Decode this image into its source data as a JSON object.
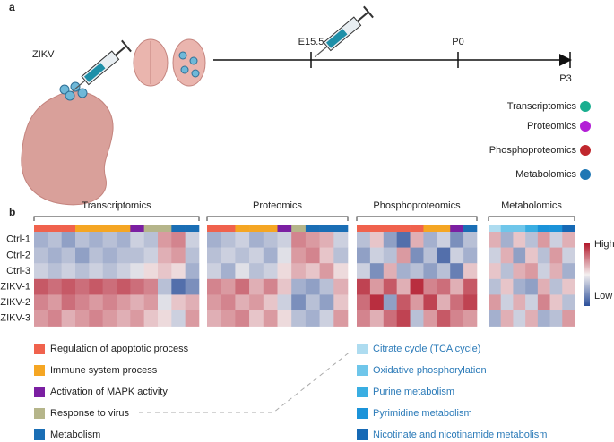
{
  "panel_a": {
    "label": "a",
    "virus": "ZIKV",
    "timeline": [
      "E15.5",
      "P0",
      "P3"
    ],
    "omics": [
      {
        "label": "Transcriptomics",
        "color": "#1aae8f"
      },
      {
        "label": "Proteomics",
        "color": "#b31fd6"
      },
      {
        "label": "Phosphoproteomics",
        "color": "#c0272d"
      },
      {
        "label": "Metabolomics",
        "color": "#1f77b4"
      }
    ]
  },
  "panel_b": {
    "label": "b",
    "rows": [
      "Ctrl-1",
      "Ctrl-2",
      "Ctrl-3",
      "ZIKV-1",
      "ZIKV-2",
      "ZIKV-3"
    ],
    "scale": [
      -1,
      1
    ],
    "scale_high": "High",
    "scale_low": "Low",
    "panels": [
      {
        "title": "Transcriptomics",
        "annotation": [
          "#f0624d",
          "#f0624d",
          "#f0624d",
          "#f5a623",
          "#f5a623",
          "#f5a623",
          "#f5a623",
          "#7b1fa2",
          "#b5b58a",
          "#b5b58a",
          "#1a6eb5",
          "#1a6eb5"
        ],
        "values": [
          [
            -0.4,
            -0.3,
            -0.5,
            -0.3,
            -0.4,
            -0.3,
            -0.4,
            -0.2,
            -0.3,
            0.4,
            0.5,
            -0.2
          ],
          [
            -0.3,
            -0.4,
            -0.3,
            -0.5,
            -0.3,
            -0.4,
            -0.3,
            -0.3,
            -0.2,
            0.3,
            0.4,
            -0.3
          ],
          [
            -0.2,
            -0.3,
            -0.2,
            -0.3,
            -0.2,
            -0.3,
            -0.2,
            -0.1,
            0.1,
            0.2,
            0.1,
            -0.4
          ],
          [
            0.7,
            0.6,
            0.7,
            0.6,
            0.7,
            0.6,
            0.7,
            0.6,
            0.5,
            -0.3,
            -0.8,
            -0.6
          ],
          [
            0.5,
            0.4,
            0.6,
            0.5,
            0.4,
            0.5,
            0.4,
            0.3,
            0.4,
            -0.1,
            0.2,
            0.3
          ],
          [
            0.4,
            0.5,
            0.3,
            0.4,
            0.5,
            0.4,
            0.3,
            0.4,
            0.2,
            0.1,
            -0.2,
            0.4
          ]
        ]
      },
      {
        "title": "Proteomics",
        "annotation": [
          "#f0624d",
          "#f0624d",
          "#f5a623",
          "#f5a623",
          "#f5a623",
          "#7b1fa2",
          "#b5b58a",
          "#1a6eb5",
          "#1a6eb5",
          "#1a6eb5"
        ],
        "values": [
          [
            -0.4,
            -0.3,
            -0.2,
            -0.4,
            -0.3,
            -0.2,
            0.5,
            0.4,
            0.3,
            -0.2
          ],
          [
            -0.3,
            -0.2,
            -0.3,
            -0.2,
            -0.4,
            -0.1,
            0.4,
            0.5,
            0.2,
            -0.3
          ],
          [
            -0.2,
            -0.4,
            -0.1,
            -0.3,
            -0.2,
            0.1,
            0.3,
            0.2,
            0.4,
            0.1
          ],
          [
            0.5,
            0.4,
            0.6,
            0.3,
            0.5,
            0.2,
            -0.4,
            -0.5,
            -0.3,
            0.3
          ],
          [
            0.4,
            0.5,
            0.3,
            0.4,
            0.2,
            -0.2,
            -0.6,
            -0.3,
            -0.5,
            0.2
          ],
          [
            0.3,
            0.4,
            0.5,
            0.2,
            0.4,
            0.1,
            -0.3,
            -0.4,
            -0.2,
            0.4
          ]
        ]
      },
      {
        "title": "Phosphoproteomics",
        "annotation": [
          "#f0624d",
          "#f0624d",
          "#f0624d",
          "#f0624d",
          "#f0624d",
          "#f5a623",
          "#f5a623",
          "#7b1fa2",
          "#1a6eb5"
        ],
        "values": [
          [
            -0.3,
            0.2,
            -0.5,
            -0.8,
            0.3,
            -0.4,
            -0.2,
            -0.6,
            -0.3
          ],
          [
            -0.5,
            -0.2,
            -0.3,
            0.4,
            -0.6,
            -0.3,
            -0.8,
            -0.2,
            -0.4
          ],
          [
            -0.2,
            -0.6,
            0.3,
            -0.4,
            -0.3,
            -0.5,
            -0.3,
            -0.7,
            0.2
          ],
          [
            0.8,
            0.4,
            0.7,
            0.3,
            0.9,
            0.5,
            0.6,
            0.3,
            0.7
          ],
          [
            0.6,
            0.9,
            -0.5,
            0.7,
            0.4,
            0.8,
            0.3,
            0.6,
            0.8
          ],
          [
            0.5,
            0.3,
            0.6,
            0.8,
            -0.3,
            0.4,
            0.7,
            0.5,
            0.4
          ]
        ]
      },
      {
        "title": "Metabolomics",
        "annotation": [
          "#aedcf0",
          "#6fc6ea",
          "#6fc6ea",
          "#3aaee2",
          "#1b93d9",
          "#1b93d9",
          "#1669b5"
        ],
        "values": [
          [
            0.3,
            -0.4,
            0.2,
            -0.3,
            0.4,
            -0.2,
            0.3
          ],
          [
            -0.2,
            0.3,
            -0.5,
            0.2,
            -0.3,
            0.4,
            -0.2
          ],
          [
            0.2,
            -0.3,
            0.3,
            0.4,
            -0.2,
            0.3,
            -0.4
          ],
          [
            -0.3,
            0.2,
            -0.4,
            -0.5,
            0.3,
            -0.3,
            0.2
          ],
          [
            0.4,
            -0.2,
            0.3,
            -0.2,
            0.5,
            0.2,
            -0.3
          ],
          [
            -0.4,
            0.3,
            -0.2,
            0.3,
            -0.4,
            -0.3,
            0.4
          ]
        ]
      }
    ],
    "pathways": [
      {
        "label": "Regulation of apoptotic process",
        "color": "#f0624d"
      },
      {
        "label": "Immune system process",
        "color": "#f5a623"
      },
      {
        "label": "Activation of MAPK activity",
        "color": "#7b1fa2"
      },
      {
        "label": "Response to virus",
        "color": "#b5b58a"
      },
      {
        "label": "Metabolism",
        "color": "#1a6eb5"
      }
    ],
    "metabolic_pathways": [
      {
        "label": "Citrate cycle (TCA cycle)",
        "color": "#aedcf0"
      },
      {
        "label": "Oxidative phosphorylation",
        "color": "#6fc6ea"
      },
      {
        "label": "Purine metabolism",
        "color": "#3aaee2"
      },
      {
        "label": "Pyrimidine metabolism",
        "color": "#1b93d9"
      },
      {
        "label": "Nicotinate and nicotinamide metabolism",
        "color": "#1669b5"
      }
    ]
  }
}
